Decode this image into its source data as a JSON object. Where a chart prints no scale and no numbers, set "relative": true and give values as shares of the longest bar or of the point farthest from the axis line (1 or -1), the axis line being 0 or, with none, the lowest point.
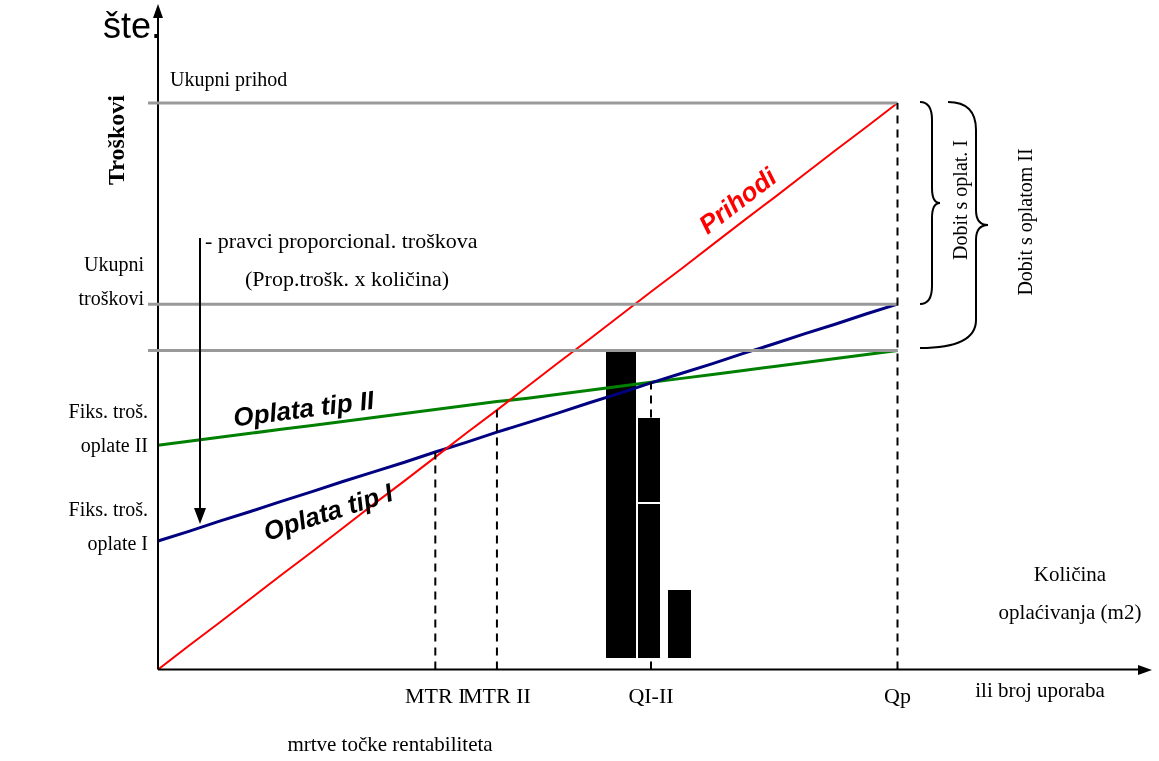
{
  "chart_data": {
    "type": "line",
    "relative": true,
    "ylabel": "Troškovi",
    "xlabel": "Količina oplaćivanja (m2)",
    "categories": [
      null,
      null,
      null,
      null,
      null,
      null,
      null,
      null,
      null,
      "MTR I",
      null,
      "MTR II",
      null,
      null,
      null,
      null,
      "QI-II",
      null,
      null,
      null,
      null,
      null,
      null,
      null,
      "Qp",
      null,
      null,
      null,
      null,
      null,
      null,
      null,
      null
    ],
    "series": [
      {
        "name": "Prihodi",
        "color": "#ff0000",
        "values": [
          0,
          0.042,
          0.083,
          0.125,
          0.167,
          0.208,
          0.25,
          0.292,
          0.333,
          0.375,
          0.417,
          0.458,
          0.5,
          0.542,
          0.583,
          0.625,
          0.667,
          0.708,
          0.75,
          0.792,
          0.833,
          0.875,
          0.917,
          0.958,
          1,
          null,
          null,
          null,
          null,
          null,
          null,
          null,
          null
        ]
      },
      {
        "name": "Oplata tip I",
        "color": "#000080",
        "values": [
          0.227,
          0.244,
          0.262,
          0.279,
          0.297,
          0.314,
          0.332,
          0.349,
          0.366,
          0.384,
          0.401,
          0.419,
          0.436,
          0.453,
          0.471,
          0.488,
          0.506,
          0.523,
          0.54,
          0.558,
          0.575,
          0.593,
          0.61,
          0.628,
          0.645,
          null,
          null,
          null,
          null,
          null,
          null,
          null,
          null
        ]
      },
      {
        "name": "Oplata tip II",
        "color": "#008000",
        "values": [
          0.396,
          0.403,
          0.41,
          0.417,
          0.424,
          0.431,
          0.438,
          0.445,
          0.452,
          0.459,
          0.466,
          0.473,
          0.479,
          0.486,
          0.493,
          0.5,
          0.507,
          0.514,
          0.521,
          0.528,
          0.535,
          0.542,
          0.549,
          0.556,
          0.563,
          null,
          null,
          null,
          null,
          null,
          null,
          null,
          null
        ]
      }
    ],
    "ref_lines": [
      {
        "axis": "y",
        "value": 1,
        "label": "Ukupni prihod",
        "color": "#999999"
      },
      {
        "axis": "y",
        "value": 0.645,
        "label": "Ukupni troškovi",
        "color": "#999999"
      },
      {
        "axis": "y",
        "value": 0.563,
        "label": null,
        "color": "#999999"
      },
      {
        "axis": "x",
        "value": "MTR I",
        "label": null,
        "color": "#000000",
        "line_style": "dashed"
      },
      {
        "axis": "x",
        "value": "MTR II",
        "label": null,
        "color": "#000000",
        "line_style": "dashed"
      },
      {
        "axis": "x",
        "value": "QI-II",
        "label": null,
        "color": "#000000",
        "line_style": "dashed"
      },
      {
        "axis": "x",
        "value": "Qp",
        "label": null,
        "color": "#000000",
        "line_style": "dashed"
      }
    ],
    "annotations": [
      "Fiks. troš. oplate II",
      "Fiks. troš. oplate I",
      "šte.",
      "- pravci proporcional. troškova",
      "(Prop.trošk. x količina)",
      "Dobit s oplat. I",
      "Dobit s oplatom II",
      "ili broj uporaba",
      "mrtve točke rentabiliteta"
    ],
    "grid": false,
    "legend": false,
    "marker": "none",
    "line_style": "solid"
  }
}
